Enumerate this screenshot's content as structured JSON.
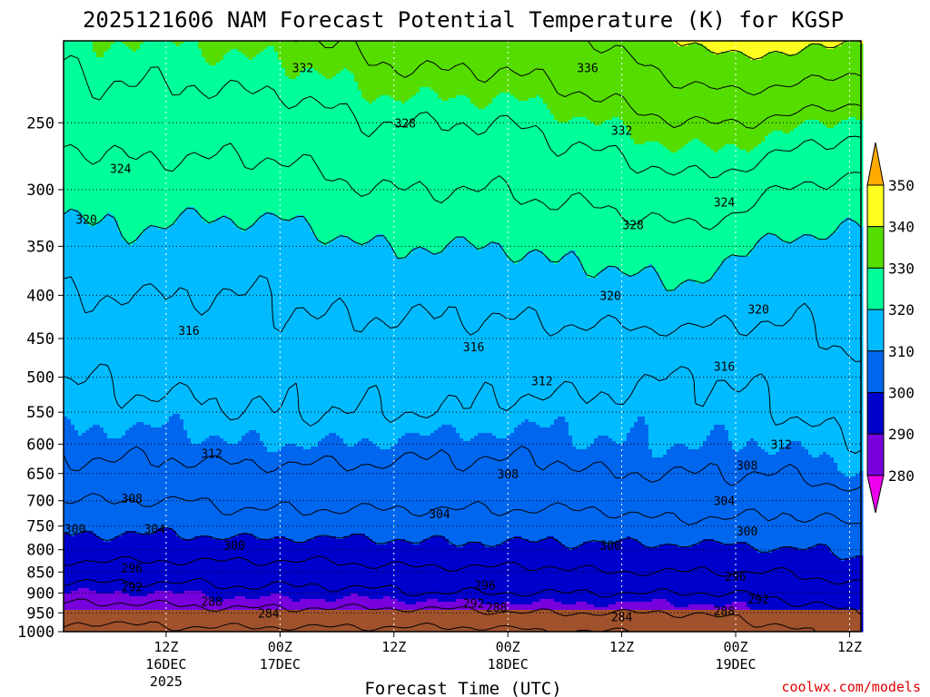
{
  "chart_data": {
    "type": "heatmap",
    "title": "2025121606 NAM Forecast Potential Temperature (K) for KGSP",
    "xlabel": "Forecast Time (UTC)",
    "ylabel": "",
    "credit": "coolwx.com/models",
    "x_range_hours": [
      -3,
      67
    ],
    "y_range_hpa": [
      1000,
      200
    ],
    "y_scale": "log",
    "grid": true,
    "grid_style": "dotted",
    "x_ticks": [
      {
        "hour": 6,
        "line1": "12Z",
        "line2": "16DEC",
        "line3": "2025"
      },
      {
        "hour": 16,
        "line1": "00Z",
        "line2": "17DEC",
        "line3": ""
      },
      {
        "hour": 26,
        "line1": "12Z",
        "line2": "",
        "line3": ""
      },
      {
        "hour": 36,
        "line1": "00Z",
        "line2": "18DEC",
        "line3": ""
      },
      {
        "hour": 46,
        "line1": "12Z",
        "line2": "",
        "line3": ""
      },
      {
        "hour": 56,
        "line1": "00Z",
        "line2": "19DEC",
        "line3": ""
      },
      {
        "hour": 66,
        "line1": "12Z",
        "line2": "",
        "line3": ""
      }
    ],
    "y_ticks": [
      "250",
      "300",
      "350",
      "400",
      "450",
      "500",
      "550",
      "600",
      "650",
      "700",
      "750",
      "800",
      "850",
      "900",
      "950",
      "1000"
    ],
    "colorbar": {
      "labels": [
        "350",
        "340",
        "330",
        "320",
        "310",
        "300",
        "290",
        "280"
      ],
      "colors": [
        "#ffaa00",
        "#ffff1f",
        "#55dd00",
        "#00ff99",
        "#00bbff",
        "#0066ee",
        "#0000cc",
        "#7700dd",
        "#ee00ee"
      ]
    },
    "ground_color": "#a0522d",
    "isotherm_interval_K": 4,
    "time_hours": [
      -3,
      0,
      4,
      8,
      12,
      16,
      20,
      24,
      28,
      32,
      36,
      40,
      44,
      48,
      52,
      56,
      60,
      64,
      67
    ],
    "pressure_levels_hpa": [
      1000,
      950,
      900,
      850,
      800,
      750,
      700,
      650,
      600,
      550,
      500,
      450,
      400,
      350,
      300,
      250,
      200
    ],
    "theta_K": [
      [
        283,
        282,
        283,
        283,
        283,
        283,
        283,
        283,
        283,
        283,
        283,
        284,
        284,
        284,
        285,
        286,
        287,
        289,
        290
      ],
      [
        286,
        286,
        286,
        287,
        287,
        287,
        287,
        287,
        287,
        287,
        288,
        288,
        288,
        288,
        288,
        289,
        290,
        291,
        292
      ],
      [
        290,
        290,
        290,
        290,
        291,
        291,
        291,
        291,
        292,
        292,
        292,
        292,
        292,
        292,
        292,
        292,
        293,
        294,
        295
      ],
      [
        294,
        294,
        294,
        294,
        294,
        294,
        294,
        295,
        295,
        295,
        295,
        295,
        296,
        296,
        296,
        296,
        296,
        297,
        298
      ],
      [
        298,
        298,
        298,
        298,
        298,
        298,
        298,
        298,
        299,
        299,
        299,
        299,
        299,
        299,
        299,
        299,
        300,
        300,
        301
      ],
      [
        301,
        301,
        301,
        301,
        302,
        302,
        302,
        302,
        302,
        302,
        302,
        302,
        302,
        303,
        303,
        303,
        303,
        303,
        304
      ],
      [
        304,
        304,
        304,
        304,
        305,
        305,
        305,
        305,
        305,
        305,
        305,
        305,
        305,
        306,
        306,
        306,
        305,
        306,
        307
      ],
      [
        307,
        307,
        307,
        307,
        307,
        307,
        307,
        307,
        307,
        307,
        307,
        307,
        308,
        308,
        308,
        308,
        308,
        309,
        310
      ],
      [
        309,
        309,
        309,
        309,
        310,
        310,
        310,
        310,
        309,
        309,
        309,
        309,
        310,
        310,
        310,
        310,
        310,
        311,
        312
      ],
      [
        311,
        311,
        311,
        311,
        312,
        312,
        312,
        312,
        312,
        312,
        311,
        311,
        311,
        311,
        311,
        311,
        312,
        313,
        314
      ],
      [
        312,
        312,
        313,
        313,
        313,
        313,
        313,
        313,
        313,
        313,
        313,
        313,
        313,
        312,
        312,
        312,
        313,
        314,
        315
      ],
      [
        314,
        314,
        314,
        314,
        315,
        315,
        315,
        315,
        315,
        315,
        315,
        315,
        315,
        315,
        315,
        315,
        315,
        316,
        317
      ],
      [
        316,
        316,
        316,
        316,
        316,
        316,
        317,
        317,
        317,
        317,
        317,
        318,
        318,
        319,
        319,
        318,
        317,
        317,
        318
      ],
      [
        318,
        319,
        319,
        318,
        318,
        318,
        319,
        320,
        320,
        320,
        320,
        321,
        321,
        322,
        322,
        321,
        319,
        319,
        319
      ],
      [
        321,
        322,
        322,
        322,
        322,
        322,
        323,
        324,
        324,
        324,
        324,
        325,
        325,
        326,
        327,
        326,
        324,
        323,
        322
      ],
      [
        325,
        326,
        326,
        326,
        326,
        326,
        327,
        328,
        328,
        328,
        328,
        329,
        330,
        331,
        332,
        332,
        331,
        330,
        329
      ],
      [
        329,
        330,
        330,
        330,
        331,
        331,
        332,
        333,
        334,
        334,
        334,
        335,
        336,
        338,
        340,
        342,
        341,
        341,
        340
      ]
    ],
    "contour_labels": [
      {
        "text": "332",
        "hour": 18,
        "hpa": 215
      },
      {
        "text": "336",
        "hour": 43,
        "hpa": 215
      },
      {
        "text": "328",
        "hour": 27,
        "hpa": 250
      },
      {
        "text": "332",
        "hour": 46,
        "hpa": 255
      },
      {
        "text": "324",
        "hour": 2,
        "hpa": 283
      },
      {
        "text": "324",
        "hour": 55,
        "hpa": 310
      },
      {
        "text": "320",
        "hour": -1,
        "hpa": 325
      },
      {
        "text": "328",
        "hour": 47,
        "hpa": 330
      },
      {
        "text": "320",
        "hour": 45,
        "hpa": 400
      },
      {
        "text": "320",
        "hour": 58,
        "hpa": 415
      },
      {
        "text": "316",
        "hour": 8,
        "hpa": 440
      },
      {
        "text": "316",
        "hour": 33,
        "hpa": 460
      },
      {
        "text": "316",
        "hour": 55,
        "hpa": 485
      },
      {
        "text": "312",
        "hour": 39,
        "hpa": 505
      },
      {
        "text": "312",
        "hour": 10,
        "hpa": 615
      },
      {
        "text": "312",
        "hour": 60,
        "hpa": 600
      },
      {
        "text": "308",
        "hour": 36,
        "hpa": 650
      },
      {
        "text": "308",
        "hour": 57,
        "hpa": 635
      },
      {
        "text": "308",
        "hour": 3,
        "hpa": 695
      },
      {
        "text": "304",
        "hour": 30,
        "hpa": 725
      },
      {
        "text": "304",
        "hour": 55,
        "hpa": 700
      },
      {
        "text": "304",
        "hour": 5,
        "hpa": 755
      },
      {
        "text": "300",
        "hour": -2,
        "hpa": 755
      },
      {
        "text": "300",
        "hour": 12,
        "hpa": 790
      },
      {
        "text": "300",
        "hour": 45,
        "hpa": 790
      },
      {
        "text": "300",
        "hour": 57,
        "hpa": 760
      },
      {
        "text": "296",
        "hour": 3,
        "hpa": 840
      },
      {
        "text": "296",
        "hour": 34,
        "hpa": 880
      },
      {
        "text": "296",
        "hour": 56,
        "hpa": 860
      },
      {
        "text": "292",
        "hour": 3,
        "hpa": 885
      },
      {
        "text": "292",
        "hour": 33,
        "hpa": 925
      },
      {
        "text": "292",
        "hour": 58,
        "hpa": 915
      },
      {
        "text": "288",
        "hour": 10,
        "hpa": 920
      },
      {
        "text": "288",
        "hour": 35,
        "hpa": 935
      },
      {
        "text": "288",
        "hour": 55,
        "hpa": 945
      },
      {
        "text": "284",
        "hour": 15,
        "hpa": 950
      },
      {
        "text": "284",
        "hour": 46,
        "hpa": 960
      }
    ]
  }
}
